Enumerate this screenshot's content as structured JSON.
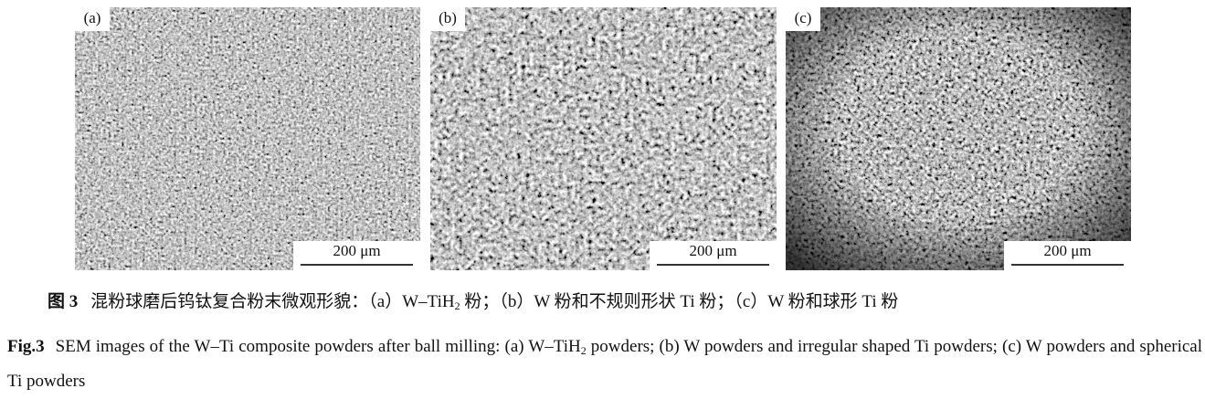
{
  "panels": [
    {
      "label": "(a)",
      "scale": "200 μm"
    },
    {
      "label": "(b)",
      "scale": "200 μm"
    },
    {
      "label": "(c)",
      "scale": "200 μm"
    }
  ],
  "caption_cn": {
    "fig": "图 3",
    "pre": "混粉球磨后钨钛复合粉末微观形貌：（a）W–TiH",
    "sub": "2",
    "post": " 粉；（b）W 粉和不规则形状 Ti 粉；（c）W 粉和球形 Ti 粉"
  },
  "caption_en": {
    "fig": "Fig.3",
    "pre": "SEM images of the W–Ti composite powders after ball milling: (a) W–TiH",
    "sub": "2",
    "post": " powders; (b) W powders and irregular shaped Ti powders; (c) W powders and spherical Ti powders"
  }
}
